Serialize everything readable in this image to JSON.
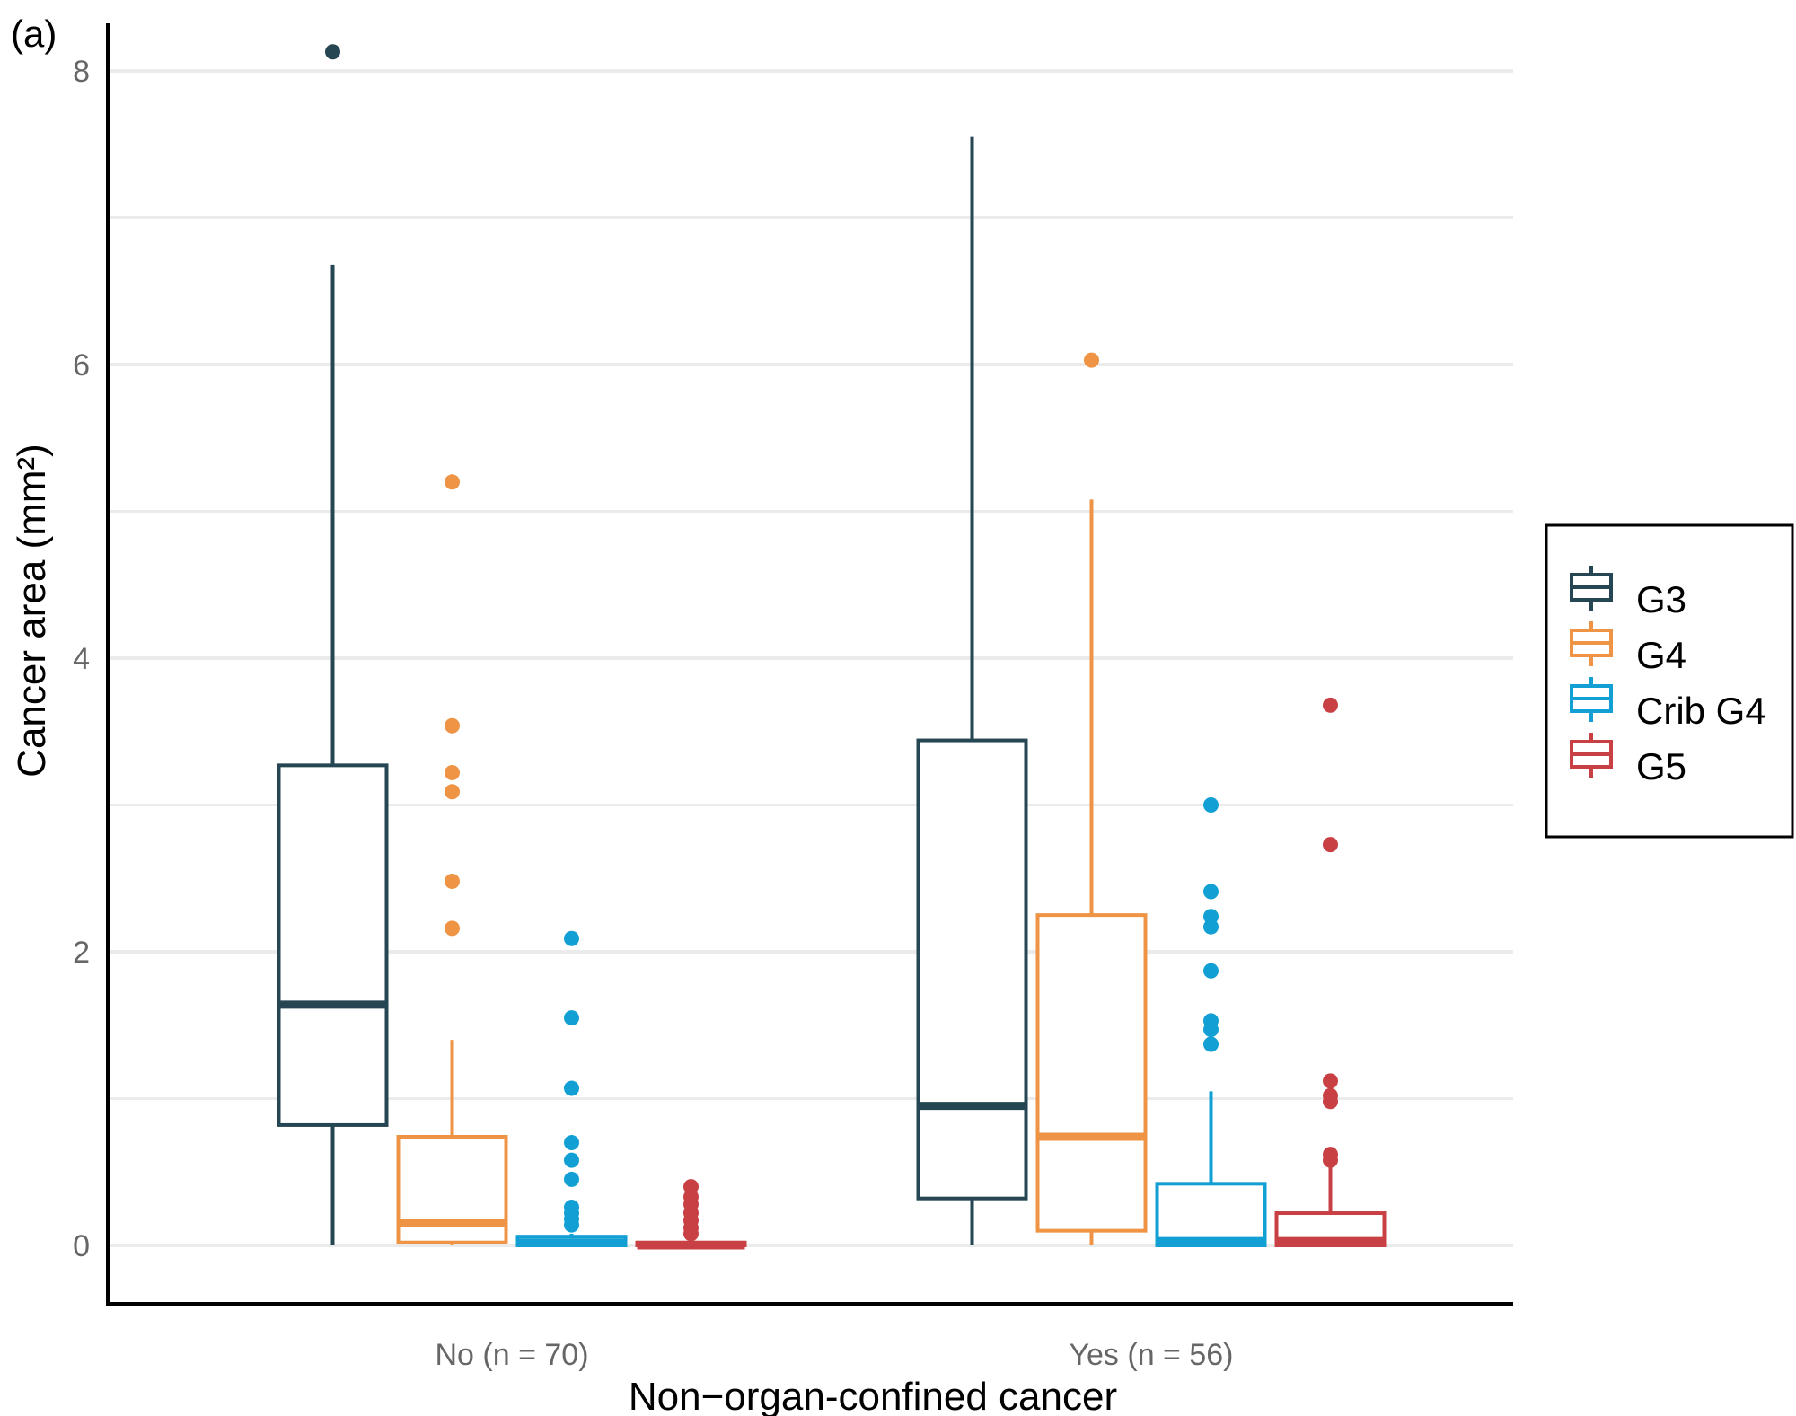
{
  "panel_label": "(a)",
  "chart_data": {
    "type": "boxplot",
    "title": "",
    "xlabel": "Non−organ-confined cancer",
    "ylabel": "Cancer area (mm²)",
    "ylim": [
      -0.4,
      8.4
    ],
    "yticks": [
      0,
      2,
      4,
      6,
      8
    ],
    "gridlines": [
      0,
      1,
      2,
      3,
      4,
      5,
      6,
      7,
      8
    ],
    "categories": [
      "No (n = 70)",
      "Yes (n = 56)"
    ],
    "legend": {
      "position": "right"
    },
    "series": [
      {
        "name": "G3",
        "color": "#264653",
        "boxes": [
          {
            "whisker_low": 0,
            "q1": 0.82,
            "median": 1.64,
            "q3": 3.27,
            "whisker_high": 6.68,
            "outliers": [
              8.13
            ]
          },
          {
            "whisker_low": 0,
            "q1": 0.32,
            "median": 0.95,
            "q3": 3.44,
            "whisker_high": 7.55,
            "outliers": []
          }
        ]
      },
      {
        "name": "G4",
        "color": "#EE9444",
        "boxes": [
          {
            "whisker_low": 0,
            "q1": 0.02,
            "median": 0.15,
            "q3": 0.74,
            "whisker_high": 1.4,
            "outliers": [
              5.2,
              3.54,
              3.22,
              3.09,
              2.48,
              2.16
            ]
          },
          {
            "whisker_low": 0,
            "q1": 0.1,
            "median": 0.74,
            "q3": 2.25,
            "whisker_high": 5.08,
            "outliers": [
              6.03
            ]
          }
        ]
      },
      {
        "name": "Crib G4",
        "color": "#12A0D4",
        "boxes": [
          {
            "whisker_low": 0,
            "q1": 0.0,
            "median": 0.02,
            "q3": 0.06,
            "whisker_high": 0.08,
            "outliers": [
              2.09,
              1.55,
              1.07,
              0.7,
              0.58,
              0.45,
              0.26,
              0.22,
              0.18,
              0.14
            ]
          },
          {
            "whisker_low": 0,
            "q1": 0.0,
            "median": 0.03,
            "q3": 0.42,
            "whisker_high": 1.05,
            "outliers": [
              3.0,
              2.41,
              2.24,
              2.17,
              1.87,
              1.53,
              1.47,
              1.37
            ]
          }
        ]
      },
      {
        "name": "G5",
        "color": "#C94044",
        "boxes": [
          {
            "whisker_low": 0,
            "q1": 0.0,
            "median": 0.0,
            "q3": 0.02,
            "whisker_high": 0.03,
            "outliers": [
              0.4,
              0.33,
              0.28,
              0.22,
              0.17,
              0.12,
              0.08
            ]
          },
          {
            "whisker_low": 0,
            "q1": 0.0,
            "median": 0.03,
            "q3": 0.22,
            "whisker_high": 0.57,
            "outliers": [
              3.68,
              2.73,
              1.12,
              1.02,
              0.98,
              0.62,
              0.58
            ]
          }
        ]
      }
    ]
  }
}
